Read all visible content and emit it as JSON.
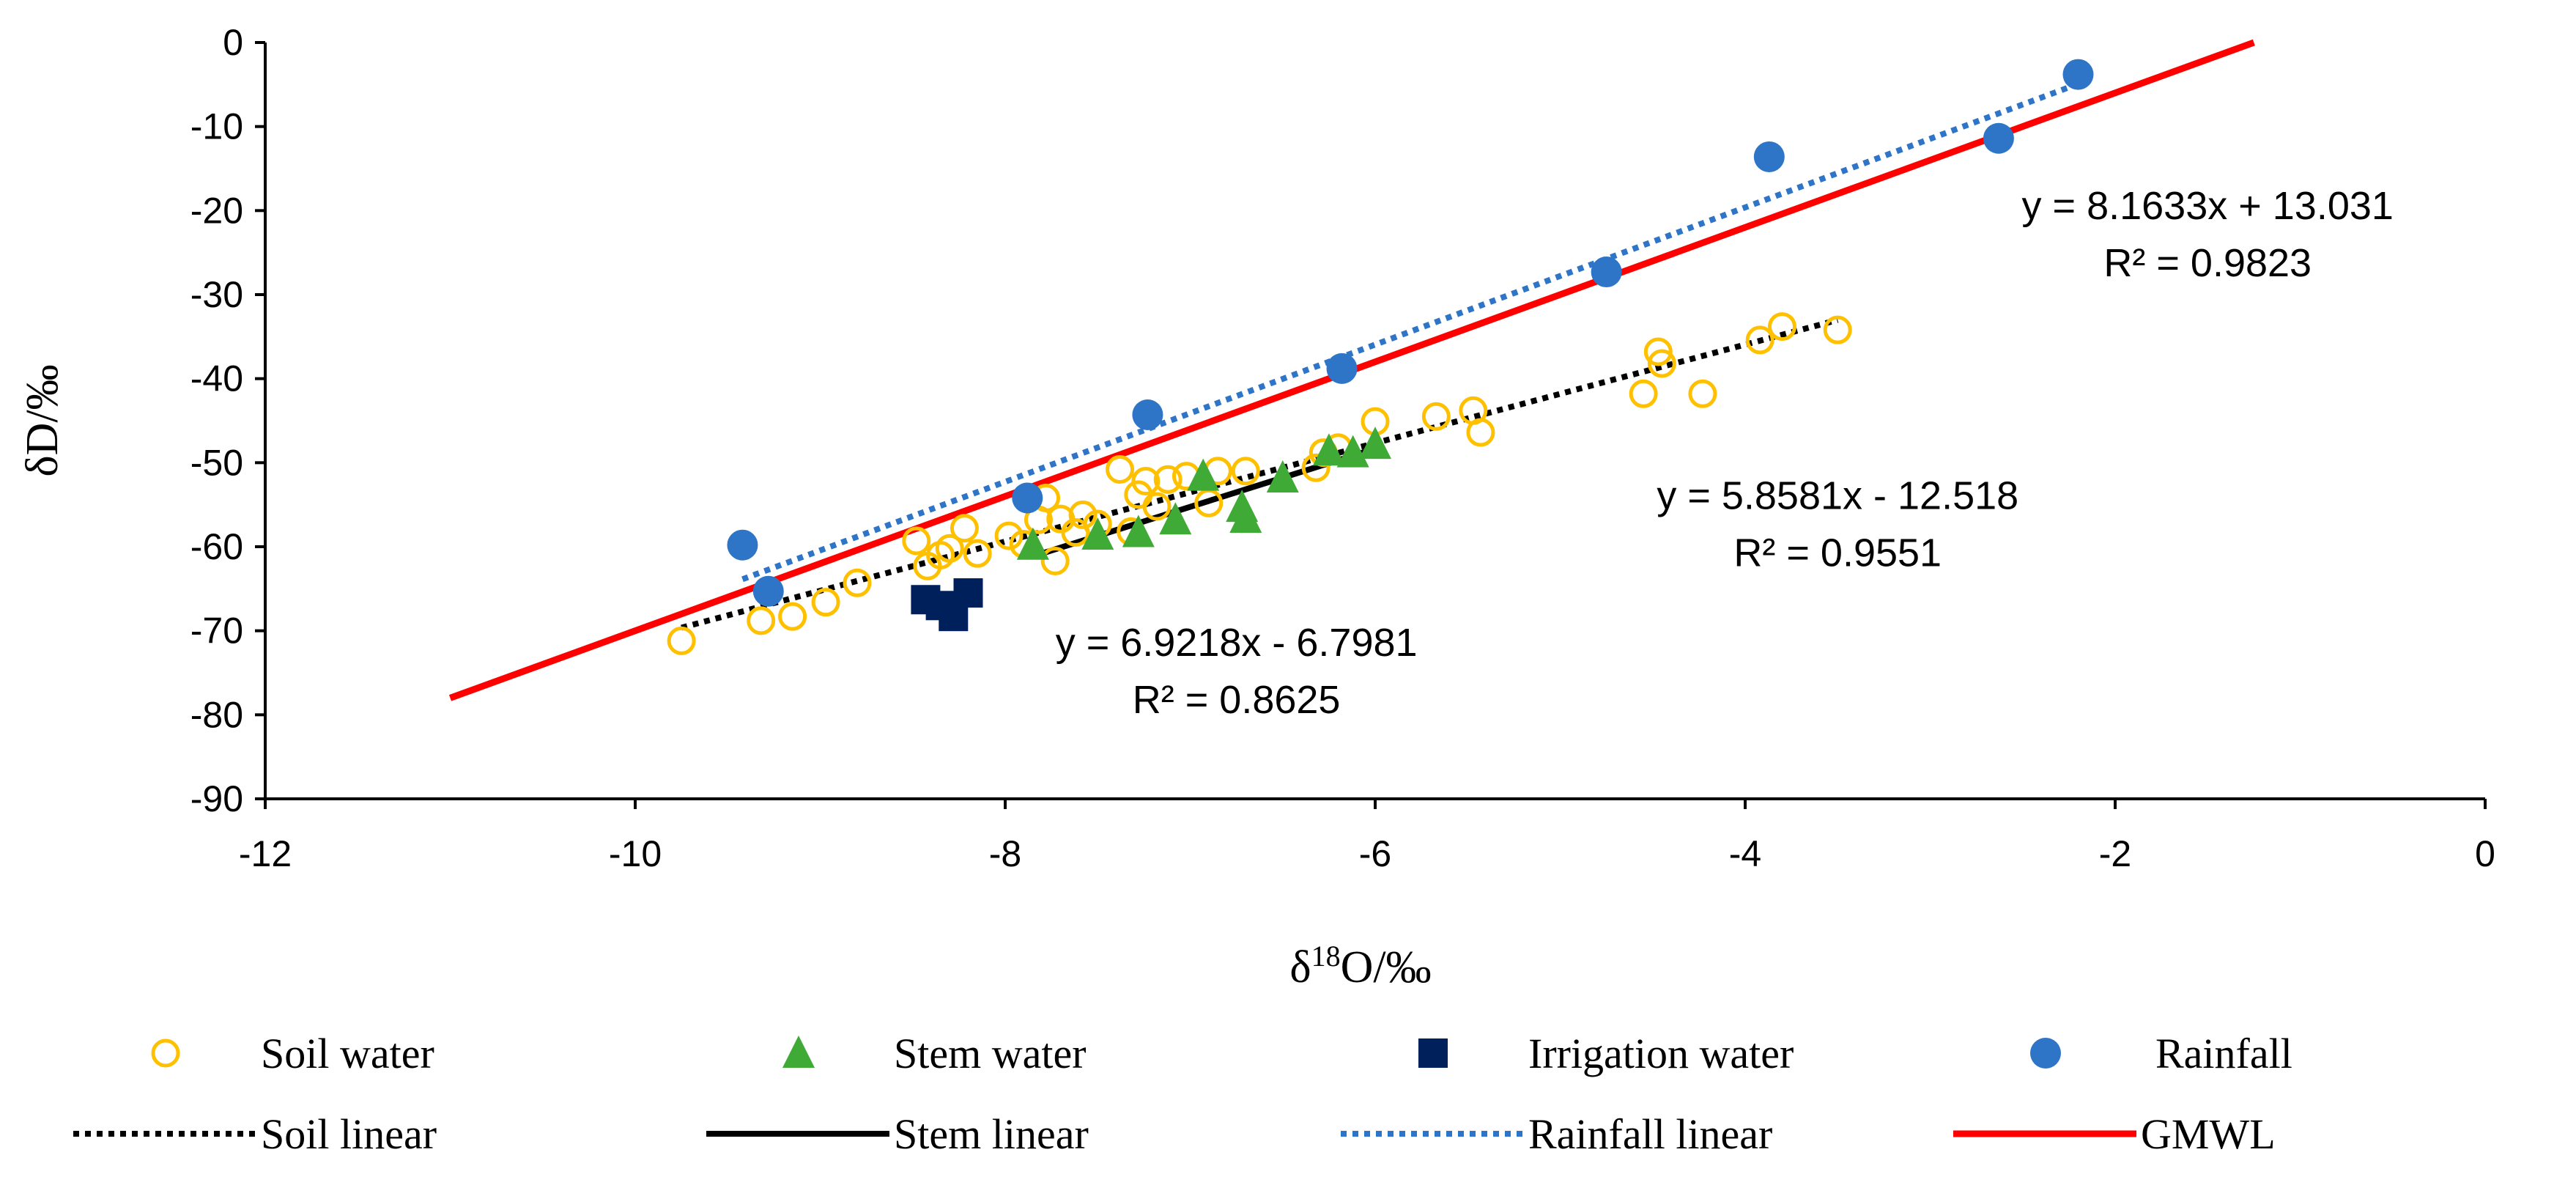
{
  "chart_data": {
    "type": "scatter",
    "xlabel": "δ¹⁸O/‰",
    "xlabel_parts": {
      "delta": "δ",
      "sup": "18",
      "rest": "O/‰"
    },
    "ylabel": "δD/‰",
    "xlim": [
      -12,
      0
    ],
    "ylim": [
      -90,
      0
    ],
    "x_ticks": [
      -12,
      -10,
      -8,
      -6,
      -4,
      -2,
      0
    ],
    "y_ticks": [
      0,
      -10,
      -20,
      -30,
      -40,
      -50,
      -60,
      -70,
      -80,
      -90
    ],
    "grid": false,
    "legend_position": "bottom",
    "series": [
      {
        "name": "Soil water",
        "kind": "points",
        "marker": "open-circle",
        "color": "#FFC000",
        "points": [
          [
            -9.75,
            -71.2
          ],
          [
            -9.32,
            -68.8
          ],
          [
            -9.15,
            -68.3
          ],
          [
            -8.97,
            -66.6
          ],
          [
            -8.8,
            -64.3
          ],
          [
            -8.48,
            -59.3
          ],
          [
            -8.42,
            -62.3
          ],
          [
            -8.35,
            -61.0
          ],
          [
            -8.3,
            -60.2
          ],
          [
            -8.22,
            -57.8
          ],
          [
            -8.15,
            -60.8
          ],
          [
            -7.98,
            -58.7
          ],
          [
            -7.9,
            -59.7
          ],
          [
            -7.82,
            -56.8
          ],
          [
            -7.78,
            -54.2
          ],
          [
            -7.73,
            -61.7
          ],
          [
            -7.7,
            -56.7
          ],
          [
            -7.62,
            -58.3
          ],
          [
            -7.58,
            -56.2
          ],
          [
            -7.5,
            -57.3
          ],
          [
            -7.38,
            -50.8
          ],
          [
            -7.32,
            -58.2
          ],
          [
            -7.28,
            -53.8
          ],
          [
            -7.24,
            -52.2
          ],
          [
            -7.18,
            -55.2
          ],
          [
            -7.12,
            -52.0
          ],
          [
            -7.02,
            -51.6
          ],
          [
            -6.9,
            -54.8
          ],
          [
            -6.85,
            -51.0
          ],
          [
            -6.7,
            -51.0
          ],
          [
            -6.32,
            -50.6
          ],
          [
            -6.28,
            -48.8
          ],
          [
            -6.2,
            -48.2
          ],
          [
            -6.0,
            -45.1
          ],
          [
            -5.67,
            -44.5
          ],
          [
            -5.47,
            -43.8
          ],
          [
            -5.43,
            -46.4
          ],
          [
            -4.55,
            -41.8
          ],
          [
            -4.47,
            -36.8
          ],
          [
            -4.45,
            -38.2
          ],
          [
            -4.23,
            -41.8
          ],
          [
            -3.92,
            -35.4
          ],
          [
            -3.8,
            -33.8
          ],
          [
            -3.5,
            -34.2
          ]
        ]
      },
      {
        "name": "Stem water",
        "kind": "points",
        "marker": "triangle",
        "color": "#3FAA35",
        "points": [
          [
            -7.85,
            -59.8
          ],
          [
            -7.5,
            -58.6
          ],
          [
            -7.28,
            -58.3
          ],
          [
            -7.08,
            -56.8
          ],
          [
            -6.93,
            -51.6
          ],
          [
            -6.72,
            -55.3
          ],
          [
            -6.7,
            -56.6
          ],
          [
            -6.5,
            -51.8
          ],
          [
            -6.25,
            -48.6
          ],
          [
            -6.12,
            -48.8
          ],
          [
            -6.0,
            -47.8
          ]
        ]
      },
      {
        "name": "Irrigation water",
        "kind": "points",
        "marker": "square",
        "color": "#00205B",
        "points": [
          [
            -8.43,
            -66.3
          ],
          [
            -8.35,
            -67.0
          ],
          [
            -8.28,
            -68.3
          ],
          [
            -8.2,
            -65.5
          ]
        ]
      },
      {
        "name": "Rainfall",
        "kind": "points",
        "marker": "filled-circle",
        "color": "#2E75C8",
        "points": [
          [
            -9.42,
            -59.8
          ],
          [
            -9.28,
            -65.3
          ],
          [
            -7.88,
            -54.2
          ],
          [
            -7.23,
            -44.3
          ],
          [
            -6.18,
            -38.8
          ],
          [
            -4.75,
            -27.3
          ],
          [
            -3.87,
            -13.6
          ],
          [
            -2.63,
            -11.4
          ],
          [
            -2.2,
            -3.8
          ]
        ]
      },
      {
        "name": "Soil linear",
        "kind": "line",
        "style": "dotted",
        "color": "#000000",
        "x_range": [
          -9.75,
          -3.5
        ],
        "slope": 5.8581,
        "intercept": -12.518
      },
      {
        "name": "Stem linear",
        "kind": "line",
        "style": "solid",
        "color": "#000000",
        "x_range": [
          -7.85,
          -6.0
        ],
        "slope": 6.9218,
        "intercept": -6.7981
      },
      {
        "name": "Rainfall linear",
        "kind": "line",
        "style": "dotted",
        "color": "#2E75C8",
        "x_range": [
          -9.42,
          -2.2
        ],
        "slope": 8.1633,
        "intercept": 13.031
      },
      {
        "name": "GMWL",
        "kind": "line",
        "style": "solid",
        "color": "#FF0000",
        "x_range": [
          -11.0,
          -1.25
        ],
        "slope": 8,
        "intercept": 10
      }
    ],
    "annotations": [
      {
        "lines": [
          "y = 8.1633x + 13.031",
          "R² = 0.9823"
        ],
        "at": [
          -1.5,
          -21
        ]
      },
      {
        "lines": [
          "y = 5.8581x - 12.518",
          "R² = 0.9551"
        ],
        "at": [
          -3.5,
          -55.5
        ]
      },
      {
        "lines": [
          "y = 6.9218x - 6.7981",
          "R² = 0.8625"
        ],
        "at": [
          -6.75,
          -73
        ]
      }
    ]
  }
}
